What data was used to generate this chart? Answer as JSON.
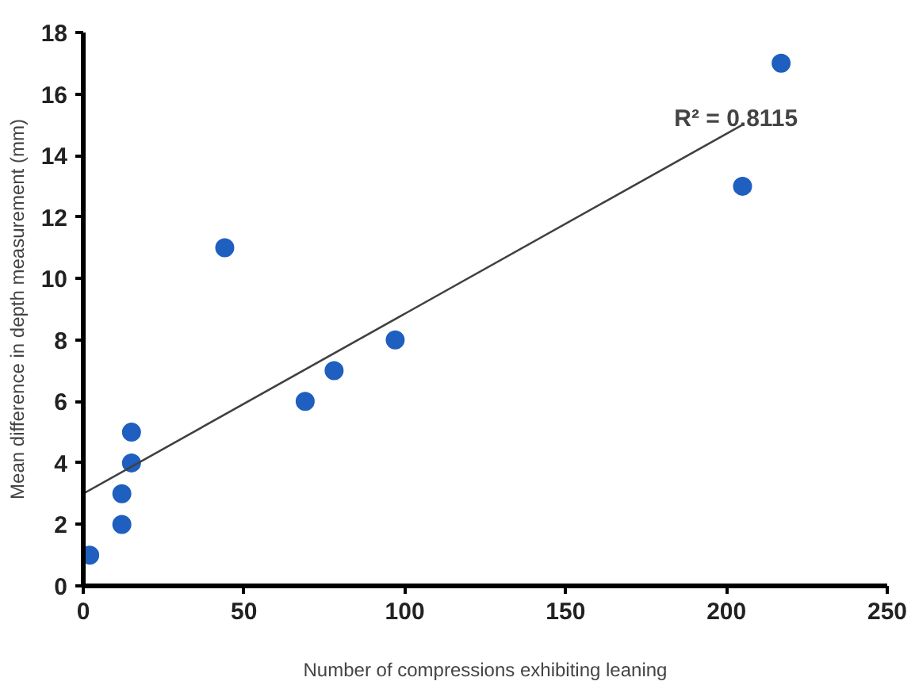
{
  "chart_data": {
    "type": "scatter",
    "xlabel": "Number of compressions exhibiting leaning",
    "ylabel": "Mean difference in depth measurement (mm)",
    "x": [
      2,
      12,
      12,
      15,
      15,
      44,
      69,
      78,
      97,
      205,
      217
    ],
    "series": [
      {
        "marker": "circle",
        "color": "#1f5fbf",
        "values": [
          1,
          2,
          3,
          4,
          5,
          11,
          6,
          7,
          8,
          13,
          17
        ]
      },
      {
        "type": "line",
        "color": "#404040",
        "x": [
          0,
          205
        ],
        "values": [
          3,
          15
        ]
      }
    ],
    "annotations": [
      "R² = 0.8115"
    ],
    "xlim": [
      0,
      250
    ],
    "ylim": [
      0,
      18
    ],
    "xticks": [
      0,
      50,
      100,
      150,
      200,
      250
    ],
    "yticks": [
      0,
      2,
      4,
      6,
      8,
      10,
      12,
      14,
      16,
      18
    ],
    "grid": false
  }
}
